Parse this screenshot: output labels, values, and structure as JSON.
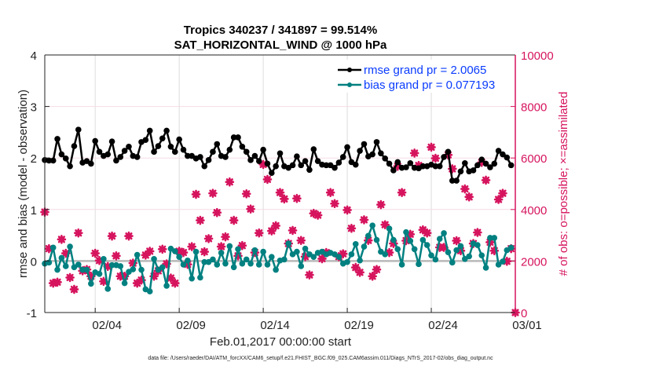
{
  "chart_data": {
    "type": "line",
    "title": [
      "Tropics 340237 / 341897 = 99.514%",
      "SAT_HORIZONTAL_WIND @ 1000 hPa"
    ],
    "xlabel": "Feb.01,2017 00:00:00 start",
    "ylabel": "rmse and bias (model - observation)",
    "y2label": "# of obs: o=possible; ×=assimilated",
    "footer": "data file: /Users/raeder/DAI/ATM_forcXX/CAM6_setup/f.e21.FHIST_BGC.f09_025.CAM6assim.011/Diags_NTrS_2017-02/obs_diag_output.nc",
    "x_units": "days since Feb 01 2017 00:00",
    "x_step": 0.25,
    "xlim": [
      0,
      28
    ],
    "ylim": [
      -1,
      4
    ],
    "y2lim": [
      0,
      10000
    ],
    "x_ticks": [
      {
        "value": 3,
        "label": "02/04"
      },
      {
        "value": 8,
        "label": "02/09"
      },
      {
        "value": 13,
        "label": "02/14"
      },
      {
        "value": 18,
        "label": "02/19"
      },
      {
        "value": 23,
        "label": "02/24"
      },
      {
        "value": 28,
        "label": "03/01"
      }
    ],
    "y_ticks": [
      -1,
      0,
      1,
      2,
      3,
      4
    ],
    "y2_ticks": [
      0,
      2000,
      4000,
      6000,
      8000,
      10000
    ],
    "grid": true,
    "legend_position": "top-right",
    "colors": {
      "rmse": "#000000",
      "bias": "#008080",
      "obs": "#d6145e",
      "legend_text": "#0a3cff"
    },
    "series": [
      {
        "name": "rmse grand pr = 2.0065",
        "axis": "left",
        "values": [
          1.96,
          1.95,
          1.95,
          2.37,
          2.07,
          1.99,
          1.84,
          2.23,
          2.55,
          1.91,
          1.94,
          1.89,
          2.33,
          2.12,
          2.04,
          2.07,
          2.32,
          1.95,
          2.02,
          2.14,
          2.22,
          2.04,
          2.02,
          2.31,
          2.35,
          2.53,
          2.12,
          2.23,
          2.38,
          2.53,
          2.22,
          2.12,
          2.36,
          2.16,
          2.04,
          2.04,
          1.99,
          2.02,
          1.84,
          1.96,
          2.12,
          2.27,
          2.04,
          2.02,
          2.16,
          2.4,
          2.4,
          2.22,
          2.12,
          1.96,
          2.04,
          1.94,
          2.16,
          1.89,
          1.71,
          1.84,
          2.09,
          1.84,
          1.81,
          1.86,
          2.03,
          1.86,
          1.94,
          1.77,
          2.17,
          1.94,
          1.87,
          1.86,
          1.86,
          1.81,
          1.91,
          2.02,
          2.21,
          1.92,
          1.87,
          2.14,
          2.27,
          2.03,
          2.07,
          2.31,
          2.09,
          1.99,
          1.89,
          1.76,
          1.92,
          1.81,
          1.82,
          1.9,
          1.81,
          1.8,
          1.84,
          1.84,
          1.87,
          1.84,
          1.84,
          2.02,
          2.12,
          1.56,
          1.56,
          1.74,
          1.9,
          1.74,
          1.76,
          1.86,
          1.97,
          1.89,
          1.82,
          1.89,
          2.14,
          2.07,
          2.01,
          1.86
        ]
      },
      {
        "name": "bias grand pr = 0.077193",
        "axis": "left",
        "values": [
          -0.05,
          -0.03,
          0.26,
          -0.17,
          0.06,
          -0.1,
          0.28,
          -0.12,
          -0.07,
          -0.17,
          -0.17,
          -0.44,
          -0.22,
          -0.25,
          0.04,
          -0.54,
          -0.08,
          -0.08,
          -0.1,
          -0.43,
          -0.21,
          -0.16,
          0.12,
          -0.17,
          -0.55,
          -0.59,
          0.04,
          -0.17,
          -0.12,
          -0.48,
          0.24,
          0.19,
          0.08,
          -0.07,
          0.01,
          -0.34,
          0.18,
          -0.32,
          -0.02,
          -0.02,
          0.03,
          -0.07,
          0.16,
          -0.05,
          0.29,
          -0.12,
          0.23,
          -0.05,
          0.03,
          -0.05,
          0.21,
          -0.07,
          0.18,
          -0.07,
          0.08,
          -0.17,
          0.01,
          0.03,
          0.34,
          0.13,
          0.18,
          -0.1,
          0.24,
          0.13,
          0.08,
          0.16,
          0.18,
          0.13,
          0.16,
          0.13,
          0.08,
          -0.05,
          -0.02,
          0.13,
          0.33,
          0.01,
          0.28,
          0.49,
          0.69,
          0.41,
          0.18,
          0.13,
          0.63,
          0.41,
          0.23,
          -0.07,
          0.56,
          0.39,
          0.23,
          -0.06,
          0.41,
          0.31,
          0.11,
          0.03,
          0.43,
          0.54,
          0.17,
          -0.03,
          0.21,
          0.29,
          0.04,
          0.09,
          0.34,
          0.31,
          0.11,
          -0.13,
          0.45,
          0.45,
          -0.07,
          -0.01,
          0.21,
          0.26
        ]
      },
      {
        "name": "# of obs (possible / assimilated)",
        "axis": "right",
        "values": [
          3900,
          2480,
          1140,
          1180,
          2840,
          2300,
          1360,
          900,
          3090,
          1620,
          1670,
          1410,
          2300,
          2020,
          1210,
          1790,
          2970,
          2200,
          1410,
          1410,
          2970,
          1920,
          1140,
          1260,
          2230,
          2380,
          1410,
          1620,
          2460,
          1890,
          1340,
          1140,
          2380,
          2330,
          1870,
          2560,
          4590,
          3580,
          2360,
          2870,
          4630,
          3880,
          2560,
          2940,
          5070,
          3580,
          2200,
          2600,
          4610,
          4020,
          2330,
          3090,
          5750,
          5170,
          3170,
          3370,
          4660,
          4410,
          2680,
          3190,
          4430,
          2800,
          2170,
          1460,
          3850,
          3780,
          2090,
          2330,
          4660,
          4230,
          2170,
          2280,
          3980,
          3270,
          1750,
          1560,
          3600,
          2800,
          1410,
          1670,
          4190,
          3410,
          2330,
          2680,
          5680,
          4660,
          2790,
          3040,
          6190,
          5710,
          3210,
          3090,
          6420,
          5990,
          2530,
          2530,
          6120,
          5580,
          2790,
          2400,
          4800,
          4490,
          2680,
          3110,
          5830,
          5140,
          2730,
          2400,
          4390,
          4630,
          1990,
          2480,
          0
        ]
      }
    ]
  }
}
